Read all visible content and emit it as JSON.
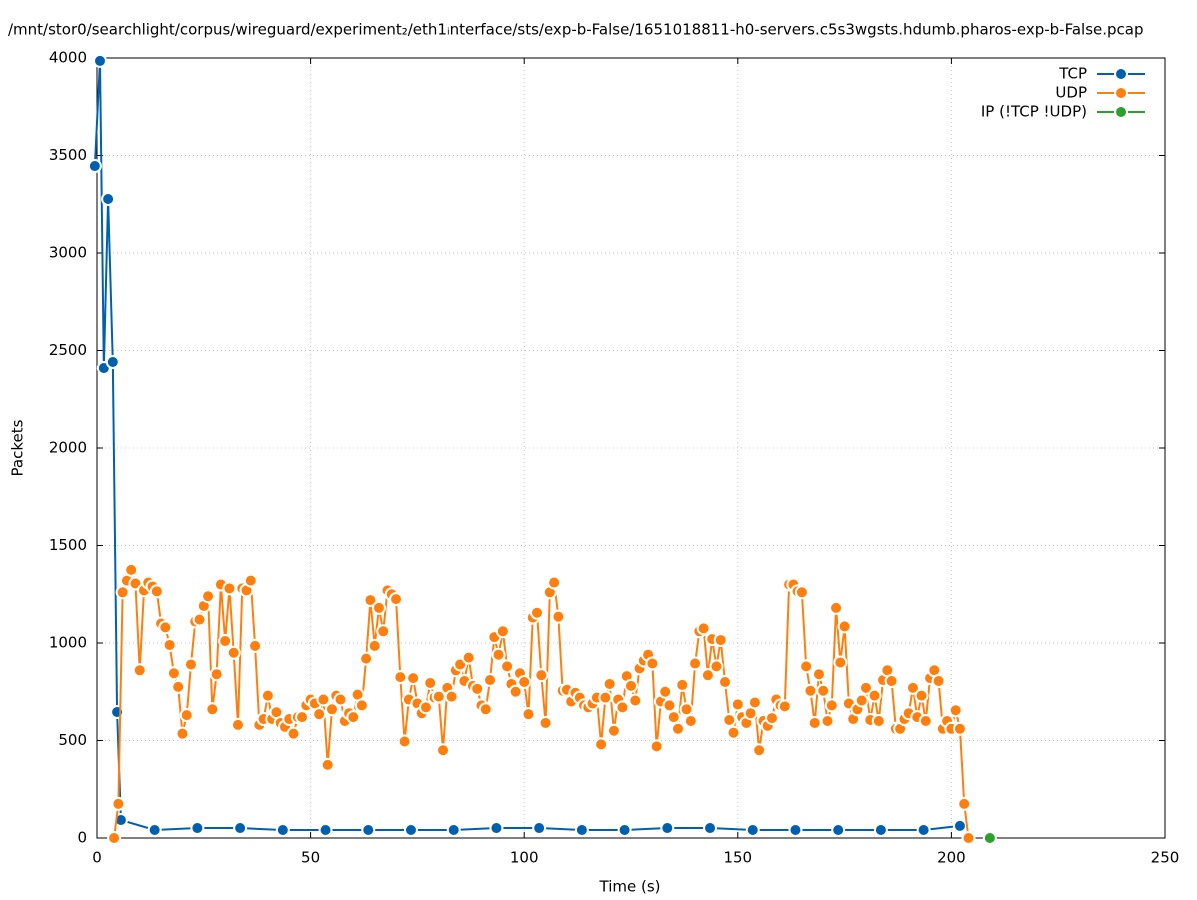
{
  "chart_data": {
    "type": "line",
    "title": "/mnt/stor0/searchlight/corpus/wireguard/experiment₂/eth1ᵢnterface/sts/exp-b-False/1651018811-h0-servers.c5s3wgsts.hdumb.pharos-exp-b-False.pcap",
    "x_label": "Time (s)",
    "y_label": "Packets",
    "xlim": [
      0,
      250
    ],
    "xticks": [
      0,
      50,
      100,
      150,
      200,
      250
    ],
    "ylim": [
      0,
      4000
    ],
    "yticks": [
      0,
      500,
      1000,
      1500,
      2000,
      2500,
      3000,
      3500,
      4000
    ],
    "grid": true,
    "legend": "top-right",
    "series": [
      {
        "name": "TCP",
        "color": "#0060ad",
        "x": [
          -0.5,
          0.7,
          1.6,
          2.6,
          3.7,
          4.7,
          5.6,
          13.5,
          23.5,
          33.5,
          43.5,
          53.5,
          63.5,
          73.5,
          83.5,
          93.5,
          103.5,
          113.5,
          123.5,
          133.5,
          143.5,
          153.5,
          163.5,
          173.5,
          183.5,
          193.5,
          202
        ],
        "values": [
          3446,
          3985,
          2410,
          3277,
          2441,
          646,
          92,
          41,
          51,
          51,
          41,
          41,
          41,
          41,
          41,
          51,
          51,
          41,
          41,
          51,
          51,
          41,
          41,
          41,
          41,
          41,
          62
        ]
      },
      {
        "name": "UDP",
        "color": "#ff7f0e",
        "x": [
          4,
          5,
          6,
          7,
          8,
          9,
          10,
          11,
          12,
          13,
          14,
          15,
          16,
          17,
          18,
          19,
          20,
          21,
          22,
          23,
          24,
          25,
          26,
          27,
          28,
          29,
          30,
          31,
          32,
          33,
          34,
          35,
          36,
          37,
          38,
          39,
          40,
          41,
          42,
          43,
          44,
          45,
          46,
          47,
          48,
          49,
          50,
          51,
          52,
          53,
          54,
          55,
          56,
          57,
          58,
          59,
          60,
          61,
          62,
          63,
          64,
          65,
          66,
          67,
          68,
          69,
          70,
          71,
          72,
          73,
          74,
          75,
          76,
          77,
          78,
          79,
          80,
          81,
          82,
          83,
          84,
          85,
          86,
          87,
          88,
          89,
          90,
          91,
          92,
          93,
          94,
          95,
          96,
          97,
          98,
          99,
          100,
          101,
          102,
          103,
          104,
          105,
          106,
          107,
          108,
          109,
          110,
          111,
          112,
          113,
          114,
          115,
          116,
          117,
          118,
          119,
          120,
          121,
          122,
          123,
          124,
          125,
          126,
          127,
          128,
          129,
          130,
          131,
          132,
          133,
          134,
          135,
          136,
          137,
          138,
          139,
          140,
          141,
          142,
          143,
          144,
          145,
          146,
          147,
          148,
          149,
          150,
          151,
          152,
          153,
          154,
          155,
          156,
          157,
          158,
          159,
          160,
          161,
          162,
          163,
          164,
          165,
          166,
          167,
          168,
          169,
          170,
          171,
          172,
          173,
          174,
          175,
          176,
          177,
          178,
          179,
          180,
          181,
          182,
          183,
          184,
          185,
          186,
          187,
          188,
          189,
          190,
          191,
          192,
          193,
          194,
          195,
          196,
          197,
          198,
          199,
          200,
          201,
          202,
          203,
          204
        ],
        "values": [
          0,
          175,
          1260,
          1320,
          1375,
          1305,
          860,
          1270,
          1310,
          1290,
          1265,
          1100,
          1080,
          990,
          845,
          775,
          535,
          630,
          890,
          1110,
          1120,
          1190,
          1240,
          660,
          840,
          1300,
          1010,
          1280,
          950,
          580,
          1280,
          1270,
          1320,
          985,
          580,
          610,
          730,
          610,
          645,
          590,
          570,
          610,
          535,
          620,
          620,
          680,
          710,
          690,
          635,
          710,
          375,
          660,
          730,
          710,
          600,
          640,
          620,
          735,
          680,
          920,
          1220,
          985,
          1180,
          1060,
          1270,
          1250,
          1225,
          825,
          495,
          710,
          820,
          690,
          640,
          670,
          795,
          720,
          725,
          450,
          770,
          725,
          860,
          890,
          805,
          925,
          780,
          765,
          680,
          660,
          810,
          1030,
          940,
          1060,
          880,
          790,
          750,
          845,
          800,
          635,
          1130,
          1155,
          835,
          590,
          1260,
          1310,
          1135,
          755,
          760,
          700,
          745,
          720,
          680,
          670,
          690,
          720,
          480,
          720,
          790,
          550,
          710,
          670,
          830,
          780,
          705,
          870,
          910,
          940,
          895,
          470,
          700,
          750,
          680,
          620,
          560,
          785,
          660,
          600,
          895,
          1060,
          1075,
          835,
          1020,
          880,
          1015,
          800,
          605,
          540,
          685,
          620,
          590,
          640,
          695,
          450,
          600,
          575,
          615,
          710,
          680,
          675,
          1300,
          1300,
          1265,
          1260,
          880,
          755,
          590,
          840,
          755,
          600,
          680,
          1180,
          900,
          1085,
          690,
          610,
          660,
          705,
          770,
          605,
          730,
          600,
          810,
          860,
          805,
          560,
          560,
          610,
          640,
          770,
          620,
          730,
          600,
          820,
          860,
          805,
          560,
          600,
          560,
          655,
          560,
          175,
          0
        ]
      },
      {
        "name": "IP (!TCP  !UDP)",
        "color": "#2ca02c",
        "x": [
          209
        ],
        "values": [
          0
        ]
      }
    ]
  }
}
